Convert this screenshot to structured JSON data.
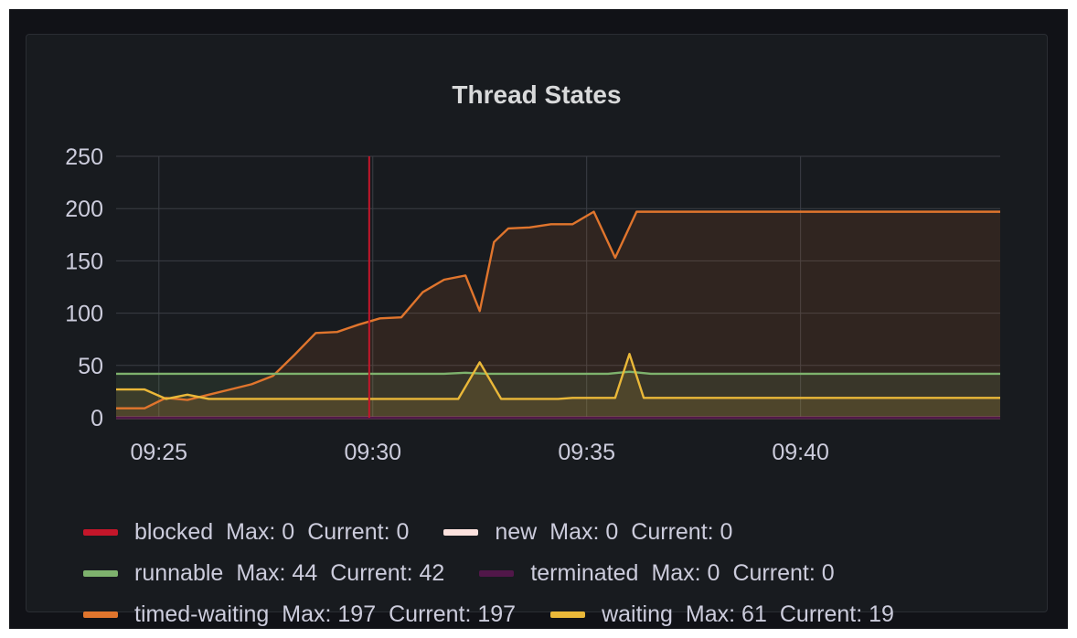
{
  "panel": {
    "title": "Thread States"
  },
  "chart_data": {
    "type": "area",
    "title": "Thread States",
    "xlabel": "",
    "ylabel": "",
    "ylim": [
      0,
      250
    ],
    "yticks": [
      0,
      50,
      100,
      150,
      200,
      250
    ],
    "xlim": [
      "09:24:00",
      "09:44:40"
    ],
    "xticks": [
      "09:25",
      "09:30",
      "09:35",
      "09:40"
    ],
    "grid": true,
    "annotation_time": "09:29:55",
    "annotation_color": "#c4162a",
    "series": [
      {
        "name": "blocked",
        "color": "#c4162a",
        "fill": false,
        "points": [
          [
            "09:24:00",
            0
          ],
          [
            "09:44:40",
            0
          ]
        ]
      },
      {
        "name": "new",
        "color": "#fce2de",
        "fill": false,
        "points": [
          [
            "09:24:00",
            0
          ],
          [
            "09:44:40",
            0
          ]
        ]
      },
      {
        "name": "runnable",
        "color": "#7eb26d",
        "fill": true,
        "points": [
          [
            "09:24:00",
            42
          ],
          [
            "09:31:40",
            42
          ],
          [
            "09:32:10",
            43
          ],
          [
            "09:32:40",
            42
          ],
          [
            "09:35:30",
            42
          ],
          [
            "09:36:00",
            44
          ],
          [
            "09:36:30",
            42
          ],
          [
            "09:44:40",
            42
          ]
        ]
      },
      {
        "name": "terminated",
        "color": "#511749",
        "fill": false,
        "points": [
          [
            "09:24:00",
            0
          ],
          [
            "09:44:40",
            0
          ]
        ]
      },
      {
        "name": "timed-waiting",
        "color": "#e0752d",
        "fill": true,
        "points": [
          [
            "09:24:00",
            9
          ],
          [
            "09:24:40",
            9
          ],
          [
            "09:25:10",
            19
          ],
          [
            "09:25:40",
            17
          ],
          [
            "09:26:10",
            22
          ],
          [
            "09:27:10",
            32
          ],
          [
            "09:27:40",
            40
          ],
          [
            "09:28:10",
            60
          ],
          [
            "09:28:40",
            81
          ],
          [
            "09:29:10",
            82
          ],
          [
            "09:29:40",
            89
          ],
          [
            "09:30:10",
            95
          ],
          [
            "09:30:40",
            96
          ],
          [
            "09:31:10",
            120
          ],
          [
            "09:31:40",
            132
          ],
          [
            "09:32:10",
            136
          ],
          [
            "09:32:30",
            102
          ],
          [
            "09:32:50",
            168
          ],
          [
            "09:33:10",
            181
          ],
          [
            "09:33:40",
            182
          ],
          [
            "09:34:10",
            185
          ],
          [
            "09:34:40",
            185
          ],
          [
            "09:35:10",
            197
          ],
          [
            "09:35:40",
            153
          ],
          [
            "09:36:10",
            197
          ],
          [
            "09:44:40",
            197
          ]
        ]
      },
      {
        "name": "waiting",
        "color": "#eab839",
        "fill": true,
        "points": [
          [
            "09:24:00",
            27
          ],
          [
            "09:24:40",
            27
          ],
          [
            "09:25:10",
            18
          ],
          [
            "09:25:40",
            22
          ],
          [
            "09:26:10",
            18
          ],
          [
            "09:32:00",
            18
          ],
          [
            "09:32:30",
            53
          ],
          [
            "09:33:00",
            18
          ],
          [
            "09:34:20",
            18
          ],
          [
            "09:34:40",
            19
          ],
          [
            "09:35:40",
            19
          ],
          [
            "09:36:00",
            61
          ],
          [
            "09:36:20",
            19
          ],
          [
            "09:44:40",
            19
          ]
        ]
      }
    ]
  },
  "legend": {
    "rows": [
      [
        {
          "name": "blocked",
          "color": "#c4162a",
          "max": "Max: 0",
          "current": "Current: 0"
        },
        {
          "name": "new",
          "color": "#fce2de",
          "max": "Max: 0",
          "current": "Current: 0"
        }
      ],
      [
        {
          "name": "runnable",
          "color": "#7eb26d",
          "max": "Max: 44",
          "current": "Current: 42"
        },
        {
          "name": "terminated",
          "color": "#511749",
          "max": "Max: 0",
          "current": "Current: 0"
        }
      ],
      [
        {
          "name": "timed-waiting",
          "color": "#e0752d",
          "max": "Max: 197",
          "current": "Current: 197"
        },
        {
          "name": "waiting",
          "color": "#eab839",
          "max": "Max: 61",
          "current": "Current: 19"
        }
      ]
    ]
  },
  "colors": {
    "background": "#111217",
    "panel": "#181b1f",
    "grid": "#3b3e45",
    "text": "#ccccdc"
  }
}
